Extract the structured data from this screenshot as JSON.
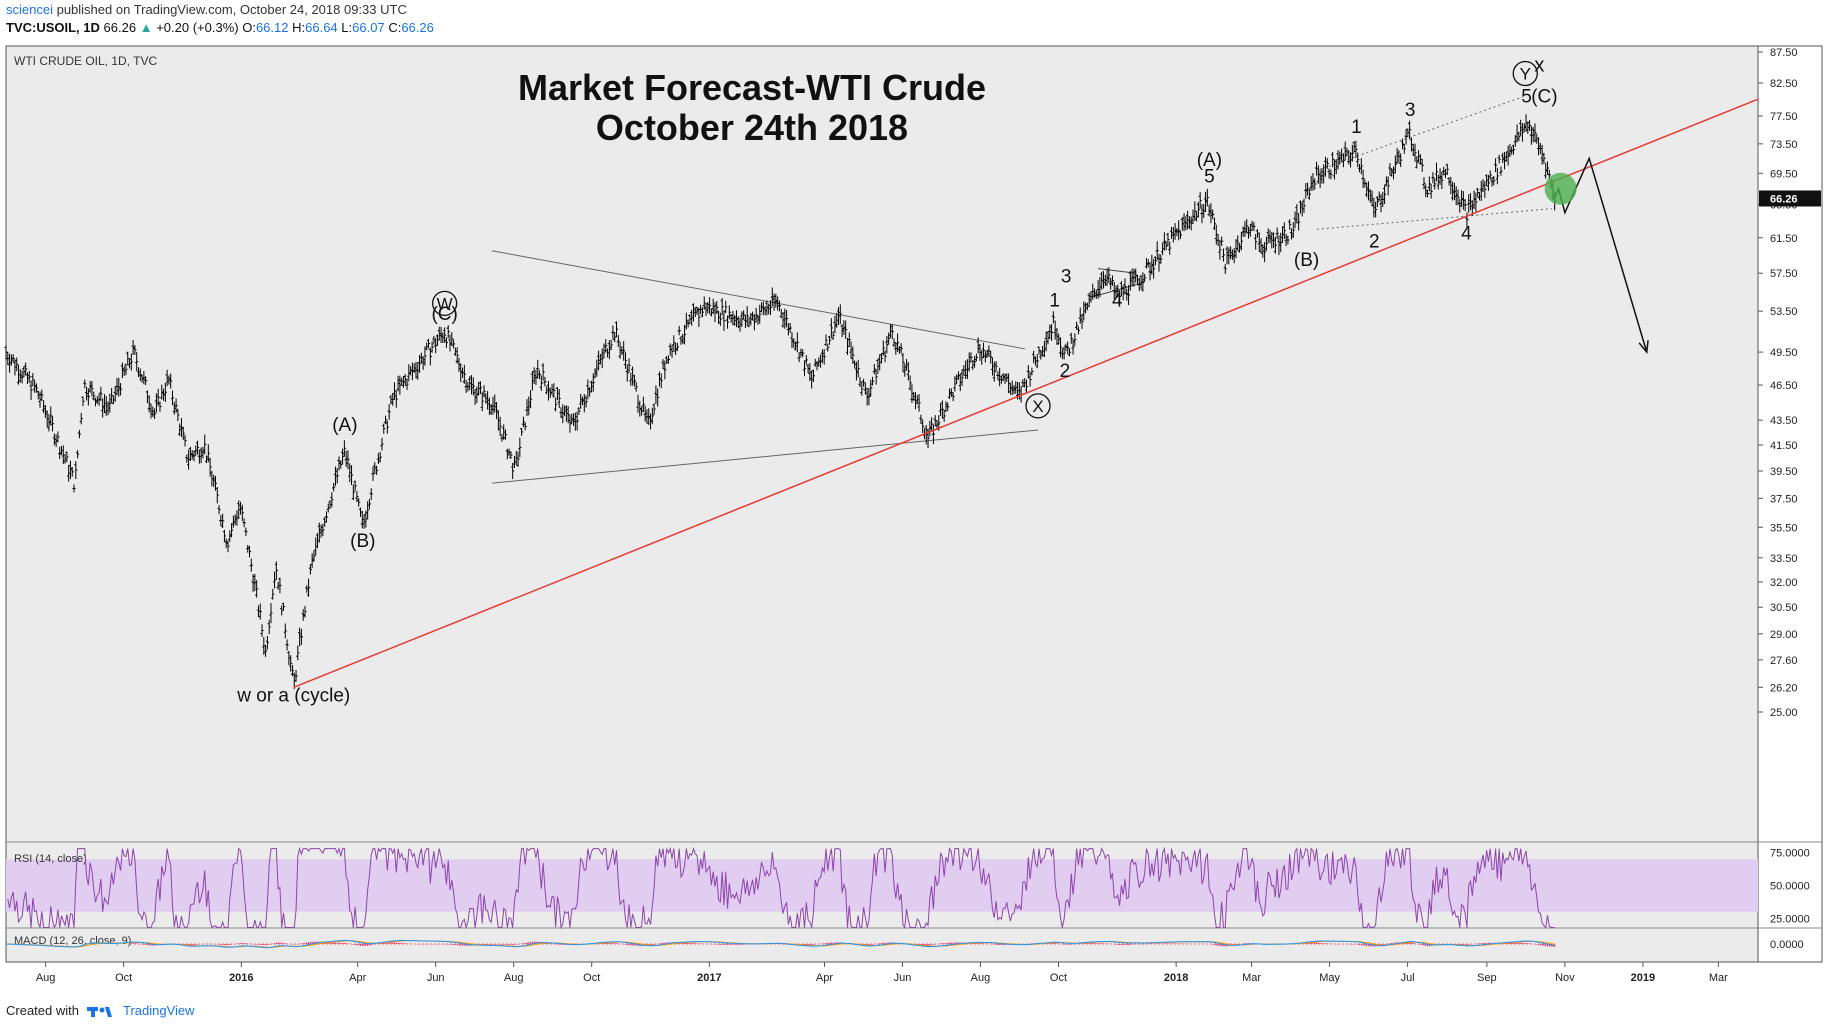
{
  "header": {
    "author": "sciencei",
    "published": "published on TradingView.com, October 24, 2018 09:33 UTC",
    "symbol": "TVC:USOIL, 1D",
    "last": "66.26",
    "change": "+0.20 (+0.3%)",
    "o_label": "O:",
    "o": "66.12",
    "h_label": "H:",
    "h": "66.64",
    "l_label": "L:",
    "l": "66.07",
    "c_label": "C:",
    "c": "66.26"
  },
  "footer": {
    "created": "Created with",
    "brand": "TradingView"
  },
  "colors": {
    "background": "#ebebeb",
    "candles": "#000000",
    "trendline": "#e53935",
    "rsi": "#8e44ad",
    "rsi_band": "#e1cdf0",
    "macd_fast": "#2196f3",
    "macd_slow": "#ff9800",
    "histogram": "#e91e63",
    "highlight": "#4caf50",
    "price_tag": "#111111"
  },
  "chart_data": {
    "type": "ohlc",
    "symbol_label": "WTI CRUDE OIL, 1D, TVC",
    "title_line1": "Market Forecast-WTI Crude",
    "title_line2": "October 24th 2018",
    "last_price": "66.26",
    "price_axis_labels": [
      "87.50",
      "82.50",
      "77.50",
      "73.50",
      "69.50",
      "65.50",
      "61.50",
      "57.50",
      "53.50",
      "49.50",
      "46.50",
      "43.50",
      "41.50",
      "39.50",
      "37.50",
      "35.50",
      "33.50",
      "32.00",
      "30.50",
      "29.00",
      "27.60",
      "26.20",
      "25.00"
    ],
    "time_axis_labels": [
      {
        "t": "2015-08",
        "text": "Aug",
        "bold": false
      },
      {
        "t": "2015-10",
        "text": "Oct",
        "bold": false
      },
      {
        "t": "2016-01",
        "text": "2016",
        "bold": true
      },
      {
        "t": "2016-04",
        "text": "Apr",
        "bold": false
      },
      {
        "t": "2016-06",
        "text": "Jun",
        "bold": false
      },
      {
        "t": "2016-08",
        "text": "Aug",
        "bold": false
      },
      {
        "t": "2016-10",
        "text": "Oct",
        "bold": false
      },
      {
        "t": "2017-01",
        "text": "2017",
        "bold": true
      },
      {
        "t": "2017-04",
        "text": "Apr",
        "bold": false
      },
      {
        "t": "2017-06",
        "text": "Jun",
        "bold": false
      },
      {
        "t": "2017-08",
        "text": "Aug",
        "bold": false
      },
      {
        "t": "2017-10",
        "text": "Oct",
        "bold": false
      },
      {
        "t": "2018-01",
        "text": "2018",
        "bold": true
      },
      {
        "t": "2018-03",
        "text": "Mar",
        "bold": false
      },
      {
        "t": "2018-05",
        "text": "May",
        "bold": false
      },
      {
        "t": "2018-07",
        "text": "Jul",
        "bold": false
      },
      {
        "t": "2018-09",
        "text": "Sep",
        "bold": false
      },
      {
        "t": "2018-11",
        "text": "Nov",
        "bold": false
      },
      {
        "t": "2019-01",
        "text": "2019",
        "bold": true
      },
      {
        "t": "2019-03",
        "text": "Mar",
        "bold": false
      }
    ],
    "price_path": [
      {
        "t": "2015-07-01",
        "y": 49.5
      },
      {
        "t": "2015-07-25",
        "y": 46.0
      },
      {
        "t": "2015-08-24",
        "y": 38.5
      },
      {
        "t": "2015-08-31",
        "y": 46.5
      },
      {
        "t": "2015-09-20",
        "y": 44.5
      },
      {
        "t": "2015-10-09",
        "y": 49.5
      },
      {
        "t": "2015-10-25",
        "y": 44.0
      },
      {
        "t": "2015-11-05",
        "y": 47.0
      },
      {
        "t": "2015-11-20",
        "y": 40.5
      },
      {
        "t": "2015-12-03",
        "y": 41.5
      },
      {
        "t": "2015-12-21",
        "y": 34.5
      },
      {
        "t": "2015-12-31",
        "y": 37.0
      },
      {
        "t": "2016-01-20",
        "y": 28.0
      },
      {
        "t": "2016-01-28",
        "y": 33.0
      },
      {
        "t": "2016-02-11",
        "y": 26.2
      },
      {
        "t": "2016-02-25",
        "y": 33.0
      },
      {
        "t": "2016-03-22",
        "y": 41.0
      },
      {
        "t": "2016-04-05",
        "y": 35.5
      },
      {
        "t": "2016-04-29",
        "y": 45.5
      },
      {
        "t": "2016-06-08",
        "y": 51.5
      },
      {
        "t": "2016-06-27",
        "y": 46.5
      },
      {
        "t": "2016-07-15",
        "y": 45.0
      },
      {
        "t": "2016-08-02",
        "y": 39.5
      },
      {
        "t": "2016-08-19",
        "y": 48.0
      },
      {
        "t": "2016-09-16",
        "y": 43.0
      },
      {
        "t": "2016-10-19",
        "y": 51.5
      },
      {
        "t": "2016-11-14",
        "y": 43.0
      },
      {
        "t": "2016-11-30",
        "y": 49.5
      },
      {
        "t": "2016-12-28",
        "y": 54.0
      },
      {
        "t": "2017-01-31",
        "y": 52.5
      },
      {
        "t": "2017-02-23",
        "y": 54.5
      },
      {
        "t": "2017-03-22",
        "y": 47.0
      },
      {
        "t": "2017-04-12",
        "y": 53.0
      },
      {
        "t": "2017-05-04",
        "y": 45.5
      },
      {
        "t": "2017-05-24",
        "y": 51.5
      },
      {
        "t": "2017-06-21",
        "y": 42.0
      },
      {
        "t": "2017-07-31",
        "y": 50.0
      },
      {
        "t": "2017-08-31",
        "y": 45.5
      },
      {
        "t": "2017-09-28",
        "y": 52.5
      },
      {
        "t": "2017-10-06",
        "y": 49.0
      },
      {
        "t": "2017-11-06",
        "y": 57.5
      },
      {
        "t": "2017-11-16",
        "y": 55.0
      },
      {
        "t": "2017-12-04",
        "y": 57.0
      },
      {
        "t": "2018-01-25",
        "y": 66.0
      },
      {
        "t": "2018-02-09",
        "y": 58.5
      },
      {
        "t": "2018-02-27",
        "y": 63.0
      },
      {
        "t": "2018-03-09",
        "y": 60.5
      },
      {
        "t": "2018-04-03",
        "y": 62.5
      },
      {
        "t": "2018-04-19",
        "y": 69.0
      },
      {
        "t": "2018-05-22",
        "y": 72.5
      },
      {
        "t": "2018-06-05",
        "y": 64.5
      },
      {
        "t": "2018-07-03",
        "y": 75.0
      },
      {
        "t": "2018-07-16",
        "y": 67.5
      },
      {
        "t": "2018-07-31",
        "y": 70.0
      },
      {
        "t": "2018-08-16",
        "y": 64.5
      },
      {
        "t": "2018-09-11",
        "y": 70.5
      },
      {
        "t": "2018-10-03",
        "y": 76.5
      },
      {
        "t": "2018-10-16",
        "y": 71.5
      },
      {
        "t": "2018-10-24",
        "y": 66.3
      }
    ],
    "annotations": [
      {
        "t": "2016-02-11",
        "y": 25.5,
        "text": "w or a (cycle)"
      },
      {
        "t": "2016-03-22",
        "y": 42.6,
        "text": "(A)"
      },
      {
        "t": "2016-04-05",
        "y": 34.2,
        "text": "(B)"
      },
      {
        "t": "2016-06-08",
        "y": 52.6,
        "text": "(C)"
      },
      {
        "t": "2017-10-07",
        "y": 56.5,
        "text": "3"
      },
      {
        "t": "2017-09-28",
        "y": 54.0,
        "text": "1"
      },
      {
        "t": "2017-10-06",
        "y": 47.2,
        "text": "2"
      },
      {
        "t": "2017-11-16",
        "y": 54.0,
        "text": "4"
      },
      {
        "t": "2018-01-27",
        "y": 70.5,
        "text": "(A)"
      },
      {
        "t": "2018-01-27",
        "y": 68.3,
        "text": "5"
      },
      {
        "t": "2018-04-13",
        "y": 58.3,
        "text": "(B)"
      },
      {
        "t": "2018-05-22",
        "y": 75.0,
        "text": "1"
      },
      {
        "t": "2018-06-05",
        "y": 60.4,
        "text": "2"
      },
      {
        "t": "2018-07-03",
        "y": 77.5,
        "text": "3"
      },
      {
        "t": "2018-08-16",
        "y": 61.3,
        "text": "4"
      },
      {
        "t": "2018-10-02",
        "y": 79.5,
        "text": "5"
      },
      {
        "t": "2018-10-16",
        "y": 79.5,
        "text": "(C)"
      }
    ],
    "circled_labels": [
      {
        "t": "2016-06-08",
        "y": 54.3,
        "text": "W"
      },
      {
        "t": "2017-09-15",
        "y": 44.7,
        "text": "X"
      },
      {
        "t": "2018-10-01",
        "y": 84.0,
        "text": "Y"
      }
    ],
    "extra_labels": [
      {
        "t": "2018-10-12",
        "y": 84.3,
        "text": "x"
      }
    ],
    "trendline": {
      "t1": "2016-02-11",
      "y1": 26.2,
      "t2": "2019-04-01",
      "y2": 80.0
    },
    "triangle_lines": [
      {
        "t1": "2016-07-15",
        "y1": 60.0,
        "t2": "2017-09-05",
        "y2": 49.8
      },
      {
        "t1": "2016-07-15",
        "y1": 38.6,
        "t2": "2017-09-15",
        "y2": 42.7
      }
    ],
    "small_lines": [
      {
        "t1": "2017-11-01",
        "y1": 58.0,
        "t2": "2017-12-01",
        "y2": 57.5
      },
      {
        "t1": "2017-10-28",
        "y1": 55.0,
        "t2": "2017-12-07",
        "y2": 56.5
      }
    ],
    "wedge_lines": [
      {
        "t1": "2018-04-23",
        "y1": 70.0,
        "t2": "2018-10-01",
        "y2": 80.5
      },
      {
        "t1": "2018-04-21",
        "y1": 62.5,
        "t2": "2018-10-22",
        "y2": 65.0
      }
    ],
    "projection": [
      {
        "t": "2018-10-24",
        "y": 66.3
      },
      {
        "t": "2018-10-27",
        "y": 67.5
      },
      {
        "t": "2018-11-01",
        "y": 64.5
      },
      {
        "t": "2018-11-20",
        "y": 71.5
      },
      {
        "t": "2019-01-04",
        "y": 49.5
      }
    ],
    "rsi": {
      "label": "RSI (14, close)",
      "band": [
        30,
        70
      ],
      "levels": [
        "75.0000",
        "50.0000",
        "25.0000"
      ]
    },
    "macd": {
      "label": "MACD (12, 26, close, 9)",
      "level": "0.0000"
    }
  }
}
